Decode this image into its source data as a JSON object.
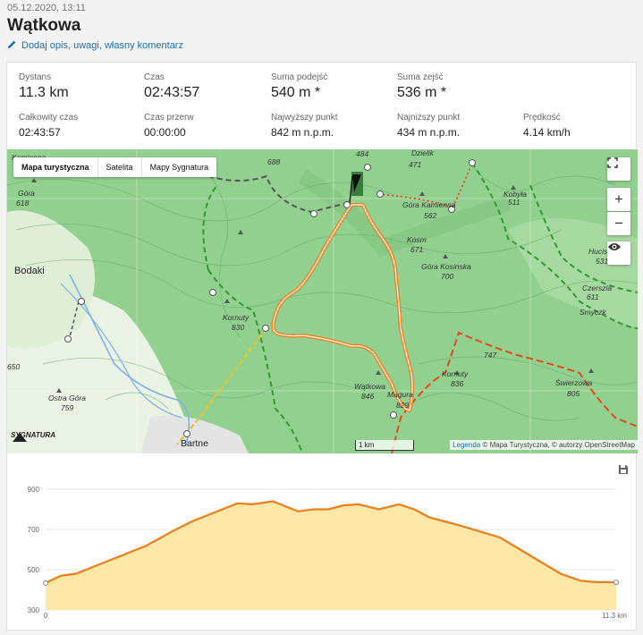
{
  "header": {
    "date": "05.12.2020, 13:11",
    "title": "Wątkowa",
    "add_description": "Dodaj opis, uwagi, własny komentarz"
  },
  "stats": {
    "distance": {
      "label": "Dystans",
      "value": "11.3 km"
    },
    "time": {
      "label": "Czas",
      "value": "02:43:57"
    },
    "ascent": {
      "label": "Suma podejść",
      "value": "540 m *"
    },
    "descent": {
      "label": "Suma zejść",
      "value": "536 m *"
    },
    "total_time": {
      "label": "Całkowity czas",
      "value": "02:43:57"
    },
    "break_time": {
      "label": "Czas przerw",
      "value": "00:00:00"
    },
    "highest": {
      "label": "Najwyższy punkt",
      "value": "842 m n.p.m."
    },
    "lowest": {
      "label": "Najniższy punkt",
      "value": "434 m n.p.m."
    },
    "speed": {
      "label": "Prędkość",
      "value": "4.14 km/h"
    }
  },
  "map": {
    "tabs": [
      "Mapa turystyczna",
      "Satelita",
      "Mapy Sygnatura"
    ],
    "active_tab": "Mapa turystyczna",
    "scale": "1 km",
    "legend_link": "Legenda",
    "attribution": "© Mapa Turystyczna, © autorzy OpenStreetMap",
    "logo": "SYGNATURA",
    "labels": {
      "kamienna_gora": "Kamienna",
      "kamienna_gora2": "Góra",
      "kamienna_gora_h": "618",
      "bodaki": "Bodaki",
      "h688": "688",
      "h484": "484",
      "dzielik": "Dzielik",
      "dzielik_h": "471",
      "kobyla": "Kobyła",
      "kobyla_h": "511",
      "gora_kamienna": "Góra Kamienna",
      "gora_kamienna_h": "562",
      "kosm": "Kosm",
      "kosm_h": "671",
      "gora_kosinska": "Góra Kosinska",
      "gora_kosinska_h": "700",
      "hucisko": "Hucis",
      "hucisko_h": "531",
      "czerszla": "Czerszla",
      "czerszla_h": "611",
      "smyczka": "Smyczk",
      "kornuty_w": "Kornuty",
      "kornuty_w_h": "830",
      "h650": "650",
      "watkowa": "Wątkowa",
      "watkowa_h": "846",
      "kornuty_e": "Kornuty",
      "kornuty_e_h": "836",
      "h747": "747",
      "swierzowa": "Świerzowa",
      "swierzowa_h": "805",
      "magura": "Magura",
      "magura_h": "829",
      "ostra_gora": "Ostra Góra",
      "ostra_gora_h": "759",
      "bartne": "Bartne"
    }
  },
  "elevation_chart": {
    "y_ticks": [
      "900",
      "700",
      "500",
      "300"
    ],
    "x_start": "0",
    "x_end": "11.3 km"
  },
  "chart_data": {
    "type": "area",
    "title": "",
    "xlabel": "",
    "ylabel": "",
    "x_unit": "km",
    "y_unit": "m n.p.m.",
    "xlim": [
      0,
      11.3
    ],
    "ylim": [
      300,
      950
    ],
    "x": [
      0,
      0.3,
      0.6,
      1.0,
      1.5,
      2.0,
      2.5,
      2.9,
      3.3,
      3.8,
      4.1,
      4.5,
      5.0,
      5.3,
      5.6,
      5.9,
      6.2,
      6.6,
      7.0,
      7.3,
      7.6,
      7.9,
      8.2,
      8.6,
      9.0,
      9.4,
      9.8,
      10.2,
      10.6,
      10.9,
      11.1,
      11.3
    ],
    "series": [
      {
        "values": [
          434,
          470,
          480,
          520,
          570,
          620,
          690,
          740,
          780,
          830,
          825,
          840,
          790,
          800,
          800,
          820,
          825,
          800,
          825,
          800,
          760,
          740,
          720,
          690,
          660,
          600,
          540,
          480,
          445,
          438,
          438,
          437
        ]
      }
    ],
    "fill_color": "#fde8a8",
    "line_color": "#f07d1a",
    "grid": true
  }
}
